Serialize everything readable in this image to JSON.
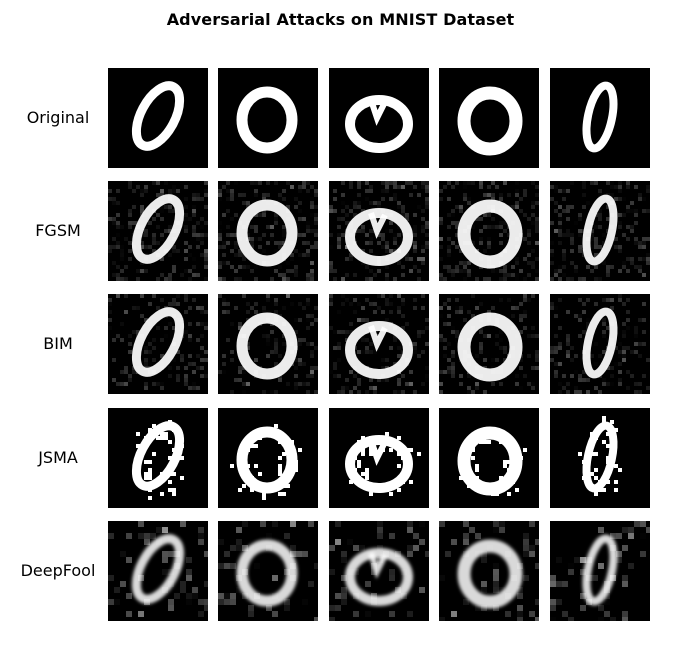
{
  "title": "Adversarial Attacks on MNIST Dataset",
  "rows": [
    {
      "label": "Original"
    },
    {
      "label": "FGSM"
    },
    {
      "label": "BIM"
    },
    {
      "label": "JSMA"
    },
    {
      "label": "DeepFool"
    }
  ],
  "samples": [
    {
      "digit": "0",
      "shape": "slanted"
    },
    {
      "digit": "0",
      "shape": "round"
    },
    {
      "digit": "0",
      "shape": "round-dented"
    },
    {
      "digit": "0",
      "shape": "round-thick"
    },
    {
      "digit": "0",
      "shape": "narrow"
    }
  ],
  "colors": {
    "background": "#000000",
    "stroke": "#ffffff"
  }
}
